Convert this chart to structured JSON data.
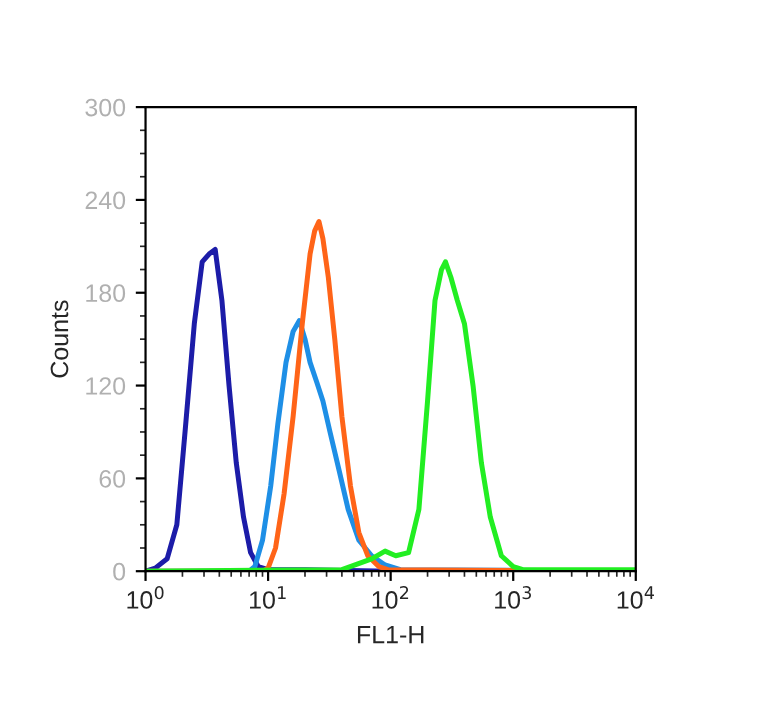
{
  "chart_data": {
    "type": "line",
    "xlabel": "FL1-H",
    "ylabel": "Counts",
    "log": "x",
    "xlim": [
      1,
      10000
    ],
    "xticks": [
      {
        "value": 1,
        "label": "10$^{0}$"
      },
      {
        "value": 10,
        "label": "10$^{1}$"
      },
      {
        "value": 100,
        "label": "10$^{2}$"
      },
      {
        "value": 1000,
        "label": "10$^{3}$"
      },
      {
        "value": 10000,
        "label": "10$^{4}$"
      }
    ],
    "ylim": [
      0,
      300
    ],
    "yticks": [
      0,
      60,
      120,
      180,
      240,
      300
    ],
    "grid": false,
    "legend": false,
    "series": [
      {
        "color": "#1c1ca8",
        "x": [
          1,
          1.2,
          1.5,
          1.8,
          2.1,
          2.5,
          2.9,
          3.3,
          3.7,
          4.2,
          4.8,
          5.5,
          6.3,
          7.2,
          8.3,
          10,
          20,
          100,
          10000
        ],
        "values": [
          0,
          2,
          8,
          30,
          90,
          160,
          200,
          205,
          208,
          175,
          120,
          70,
          35,
          12,
          3,
          1,
          1,
          0,
          0
        ]
      },
      {
        "color": "#1e8fe6",
        "x": [
          1,
          7,
          7.8,
          9,
          10.5,
          12,
          14,
          16,
          18,
          20,
          22,
          25,
          28,
          32,
          38,
          45,
          55,
          70,
          90,
          120,
          10000
        ],
        "values": [
          0,
          0,
          3,
          20,
          55,
          95,
          135,
          155,
          162,
          150,
          135,
          122,
          110,
          90,
          65,
          40,
          20,
          10,
          4,
          1,
          0
        ]
      },
      {
        "color": "#ff6418",
        "x": [
          1,
          9,
          10,
          11.5,
          13.5,
          16,
          19,
          22,
          24,
          26,
          28,
          31,
          35,
          40,
          47,
          55,
          65,
          80,
          95,
          10000
        ],
        "values": [
          0,
          0,
          2,
          15,
          50,
          100,
          160,
          205,
          220,
          226,
          215,
          190,
          150,
          100,
          55,
          25,
          10,
          3,
          1,
          0
        ]
      },
      {
        "color": "#22ee22",
        "x": [
          1,
          40,
          70,
          90,
          110,
          140,
          170,
          200,
          230,
          260,
          280,
          310,
          350,
          400,
          470,
          550,
          650,
          800,
          1000,
          1200,
          10000
        ],
        "values": [
          0,
          1,
          8,
          13,
          10,
          12,
          40,
          110,
          175,
          195,
          200,
          190,
          175,
          160,
          120,
          70,
          35,
          10,
          3,
          1,
          1
        ]
      }
    ]
  }
}
